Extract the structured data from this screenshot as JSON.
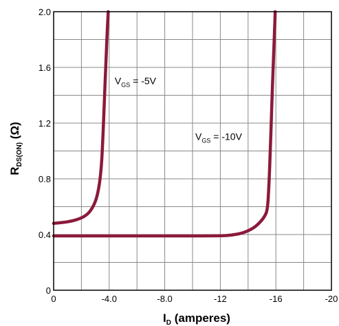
{
  "chart_data": {
    "type": "line",
    "title": "",
    "xlabel": {
      "main": "I",
      "sub": "D",
      "suffix": " (amperes)"
    },
    "ylabel": {
      "main": "R",
      "sub": "DS(ON)",
      "suffix": " (Ω)"
    },
    "xlim": [
      0,
      -20
    ],
    "ylim": [
      0,
      2.0
    ],
    "x_ticks": [
      {
        "value": 0,
        "label": "0"
      },
      {
        "value": -4,
        "label": "-4.0"
      },
      {
        "value": -8,
        "label": "-8.0"
      },
      {
        "value": -12,
        "label": "-12"
      },
      {
        "value": -16,
        "label": "-16"
      },
      {
        "value": -20,
        "label": "-20"
      }
    ],
    "y_ticks": [
      {
        "value": 0,
        "label": "0"
      },
      {
        "value": 0.4,
        "label": "0.4"
      },
      {
        "value": 0.8,
        "label": "0.8"
      },
      {
        "value": 1.2,
        "label": "1.2"
      },
      {
        "value": 1.6,
        "label": "1.6"
      },
      {
        "value": 2.0,
        "label": "2.0"
      }
    ],
    "grid": true,
    "series_color": "#8b1a3a",
    "series": [
      {
        "label": {
          "main": "V",
          "sub": "GS",
          "suffix": " = -5V"
        },
        "label_at": {
          "x": -4.4,
          "y": 1.48
        },
        "points": [
          [
            0,
            0.48
          ],
          [
            -1.0,
            0.49
          ],
          [
            -1.8,
            0.51
          ],
          [
            -2.4,
            0.54
          ],
          [
            -2.8,
            0.59
          ],
          [
            -3.1,
            0.66
          ],
          [
            -3.3,
            0.76
          ],
          [
            -3.45,
            0.9
          ],
          [
            -3.55,
            1.1
          ],
          [
            -3.65,
            1.35
          ],
          [
            -3.75,
            1.6
          ],
          [
            -3.85,
            1.85
          ],
          [
            -3.93,
            2.0
          ]
        ]
      },
      {
        "label": {
          "main": "V",
          "sub": "GS",
          "suffix": " = -10V"
        },
        "label_at": {
          "x": -10.2,
          "y": 1.08
        },
        "points": [
          [
            0,
            0.39
          ],
          [
            -6,
            0.39
          ],
          [
            -12,
            0.39
          ],
          [
            -12.8,
            0.395
          ],
          [
            -13.6,
            0.41
          ],
          [
            -14.3,
            0.44
          ],
          [
            -14.8,
            0.48
          ],
          [
            -15.2,
            0.53
          ],
          [
            -15.4,
            0.58
          ],
          [
            -15.5,
            0.75
          ],
          [
            -15.6,
            1.0
          ],
          [
            -15.7,
            1.3
          ],
          [
            -15.8,
            1.6
          ],
          [
            -15.9,
            1.85
          ],
          [
            -15.95,
            2.0
          ]
        ]
      }
    ]
  }
}
